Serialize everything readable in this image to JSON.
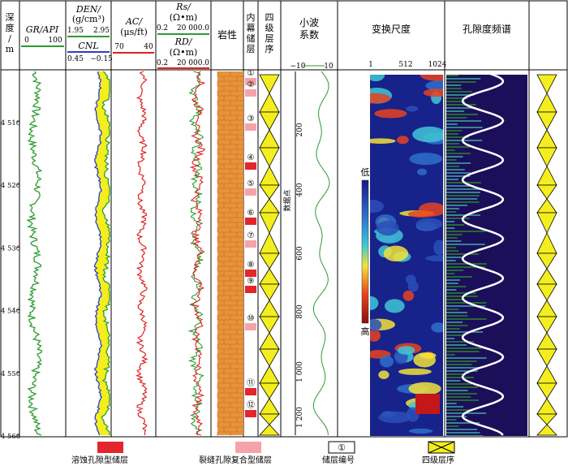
{
  "chart_data": {
    "type": "well-log-panel",
    "depth_axis": {
      "label": "深度/m",
      "ticks": [
        "4 510",
        "4 520",
        "4 530",
        "4 540",
        "4 550",
        "4 560"
      ],
      "range_m": [
        4502,
        4560
      ]
    },
    "tracks": {
      "gr": {
        "name": "GR",
        "unit": "/API",
        "scale": [
          "0",
          "100"
        ],
        "color": "#2e9a2e"
      },
      "den": {
        "name": "DEN/",
        "unit": "(g/cm³)",
        "scale": [
          "1.95",
          "2.95"
        ],
        "color": "#2e9a2e"
      },
      "cnl": {
        "name": "CNL",
        "scale": [
          "0.45",
          "−0.15"
        ],
        "color": "#2a3fc8"
      },
      "ac": {
        "name": "AC/",
        "unit": "(μs/ft)",
        "scale": [
          "70",
          "40"
        ],
        "color": "#e02020"
      },
      "rs": {
        "name": "Rs/",
        "unit": "(Ω•m)",
        "scale": [
          "0.2",
          "20 000.0"
        ],
        "color": "#2e9a2e"
      },
      "rd": {
        "name": "RD/",
        "unit": "(Ω•m)",
        "scale": [
          "0.2",
          "20 000.0"
        ],
        "color": "#e02020"
      },
      "lithology": {
        "name": "岩性"
      },
      "reservoir": {
        "name": "内幕储层",
        "labels": [
          "①",
          "②",
          "③",
          "④",
          "⑤",
          "⑥",
          "⑦",
          "⑧",
          "⑨",
          "⑩",
          "⑪",
          "⑫"
        ]
      },
      "sequence": {
        "name": "四级层序"
      },
      "wavelet": {
        "name": "小波系数",
        "scale": [
          "−10",
          "10"
        ],
        "axis_label": "数据点",
        "ticks": [
          "200",
          "400",
          "600",
          "800",
          "1 000",
          "1 200"
        ]
      },
      "scale_transform": {
        "name": "变换尺度",
        "ticks": [
          "1",
          "512",
          "1024"
        ],
        "colorbar": {
          "low": "低",
          "high": "高"
        }
      },
      "spectrum": {
        "name": "孔隙度频谱"
      }
    }
  },
  "legend": {
    "dissolution": "溶蚀孔隙型储层",
    "fracture": "裂缝孔隙复合型储层",
    "number": "储层编号",
    "number_sample": "①",
    "sequence": "四级层序"
  },
  "colors": {
    "red": "#e3262b",
    "pink": "#f5a3aa",
    "yellow": "#f4ee1e",
    "litho": "#e8923a",
    "green": "#2e9a2e",
    "blue": "#2a3fc8"
  }
}
